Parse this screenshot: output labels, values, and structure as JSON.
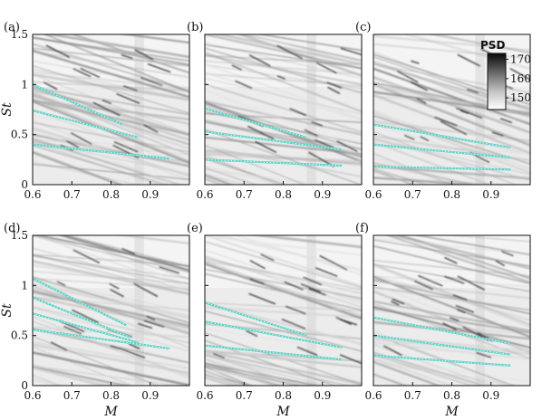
{
  "figure": {
    "colorbar": {
      "title": "PSD",
      "ticks": [
        150,
        160,
        170
      ],
      "range": [
        144,
        173
      ]
    }
  },
  "chart_data": [
    {
      "type": "heatmap",
      "panel": "(a)",
      "xlim": [
        0.6,
        1.0
      ],
      "ylim": [
        0,
        1.5
      ],
      "xticks": [
        0.6,
        0.7,
        0.8,
        0.9
      ],
      "yticks": [
        0,
        0.5,
        1,
        1.5
      ],
      "xlabel": "",
      "ylabel": "St",
      "overlay_lines": [
        {
          "x": [
            0.6,
            0.83
          ],
          "y": [
            1.0,
            0.6
          ]
        },
        {
          "x": [
            0.6,
            0.87
          ],
          "y": [
            0.74,
            0.47
          ]
        },
        {
          "x": [
            0.6,
            0.95
          ],
          "y": [
            0.4,
            0.26
          ]
        }
      ]
    },
    {
      "type": "heatmap",
      "panel": "(b)",
      "xlim": [
        0.6,
        1.0
      ],
      "ylim": [
        0,
        1.5
      ],
      "xticks": [
        0.6,
        0.7,
        0.8,
        0.9
      ],
      "yticks": [
        0,
        0.5,
        1,
        1.5
      ],
      "xlabel": "",
      "ylabel": "",
      "overlay_lines": [
        {
          "x": [
            0.6,
            0.86
          ],
          "y": [
            0.76,
            0.47
          ]
        },
        {
          "x": [
            0.6,
            0.95
          ],
          "y": [
            0.53,
            0.35
          ]
        },
        {
          "x": [
            0.6,
            0.95
          ],
          "y": [
            0.25,
            0.19
          ]
        }
      ]
    },
    {
      "type": "heatmap",
      "panel": "(c)",
      "xlim": [
        0.6,
        1.0
      ],
      "ylim": [
        0,
        1.5
      ],
      "xticks": [
        0.6,
        0.7,
        0.8,
        0.9
      ],
      "yticks": [
        0,
        0.5,
        1,
        1.5
      ],
      "xlabel": "",
      "ylabel": "",
      "overlay_lines": [
        {
          "x": [
            0.6,
            0.95
          ],
          "y": [
            0.6,
            0.37
          ]
        },
        {
          "x": [
            0.6,
            0.95
          ],
          "y": [
            0.4,
            0.27
          ]
        },
        {
          "x": [
            0.6,
            0.95
          ],
          "y": [
            0.18,
            0.15
          ]
        }
      ]
    },
    {
      "type": "heatmap",
      "panel": "(d)",
      "xlim": [
        0.6,
        1.0
      ],
      "ylim": [
        0,
        1.5
      ],
      "xticks": [
        0.6,
        0.7,
        0.8,
        0.9
      ],
      "yticks": [
        0,
        0.5,
        1,
        1.5
      ],
      "xlabel": "M",
      "ylabel": "St",
      "overlay_lines": [
        {
          "x": [
            0.6,
            0.84
          ],
          "y": [
            1.07,
            0.6
          ]
        },
        {
          "x": [
            0.6,
            0.85
          ],
          "y": [
            0.88,
            0.48
          ]
        },
        {
          "x": [
            0.6,
            0.87
          ],
          "y": [
            0.72,
            0.43
          ]
        },
        {
          "x": [
            0.6,
            0.95
          ],
          "y": [
            0.56,
            0.37
          ]
        }
      ]
    },
    {
      "type": "heatmap",
      "panel": "(e)",
      "xlim": [
        0.6,
        1.0
      ],
      "ylim": [
        0,
        1.5
      ],
      "xticks": [
        0.6,
        0.7,
        0.8,
        0.9
      ],
      "yticks": [
        0,
        0.5,
        1,
        1.5
      ],
      "xlabel": "M",
      "ylabel": "",
      "overlay_lines": [
        {
          "x": [
            0.6,
            0.86
          ],
          "y": [
            0.83,
            0.5
          ]
        },
        {
          "x": [
            0.6,
            0.95
          ],
          "y": [
            0.64,
            0.38
          ]
        },
        {
          "x": [
            0.6,
            0.95
          ],
          "y": [
            0.4,
            0.26
          ]
        }
      ]
    },
    {
      "type": "heatmap",
      "panel": "(f)",
      "xlim": [
        0.6,
        1.0
      ],
      "ylim": [
        0,
        1.5
      ],
      "xticks": [
        0.6,
        0.7,
        0.8,
        0.9
      ],
      "yticks": [
        0,
        0.5,
        1,
        1.5
      ],
      "xlabel": "M",
      "ylabel": "",
      "overlay_lines": [
        {
          "x": [
            0.6,
            0.95
          ],
          "y": [
            0.68,
            0.42
          ]
        },
        {
          "x": [
            0.6,
            0.95
          ],
          "y": [
            0.5,
            0.31
          ]
        },
        {
          "x": [
            0.6,
            0.95
          ],
          "y": [
            0.3,
            0.2
          ]
        }
      ]
    }
  ],
  "colors": {
    "overlay": "#5fd3c6",
    "axis": "#111111",
    "background": "#ffffff"
  }
}
